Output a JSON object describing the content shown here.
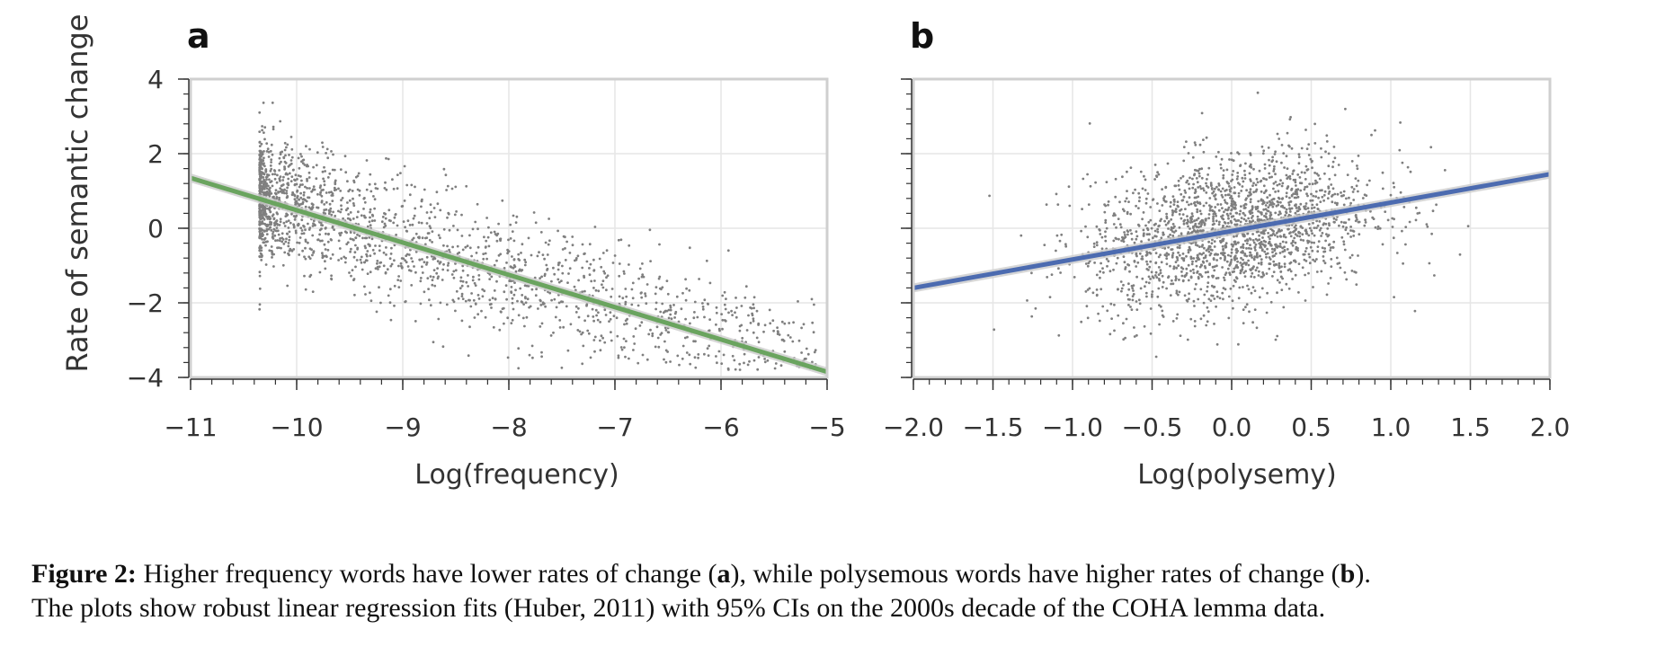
{
  "caption": {
    "prefix": "Figure 2:",
    "part1": " Higher frequency words have lower rates of change (",
    "ref_a": "a",
    "part2": "), while polysemous words have higher rates of change (",
    "ref_b": "b",
    "part3": ").",
    "line2": "The plots show robust linear regression fits (Huber, 2011) with 95% CIs on the 2000s decade of the COHA lemma data."
  },
  "chart_data": [
    {
      "type": "scatter",
      "panel_label": "a",
      "title": "",
      "xlabel": "Log(frequency)",
      "ylabel": "Rate of semantic change",
      "xlim": [
        -11,
        -5
      ],
      "ylim": [
        -4,
        4
      ],
      "xticks": [
        "−11",
        "−10",
        "−9",
        "−8",
        "−7",
        "−6",
        "−5"
      ],
      "yticks": [
        "4",
        "2",
        "0",
        "−2",
        "−4"
      ],
      "xtick_values": [
        -11,
        -10,
        -9,
        -8,
        -7,
        -6,
        -5
      ],
      "ytick_values": [
        4,
        2,
        0,
        -2,
        -4
      ],
      "grid": true,
      "scatter": {
        "color": "#7f7f7f",
        "approx_points": 2000,
        "x_range": [
          -10.35,
          -5.1
        ],
        "x_distribution": "dense near -10.3, thinning toward -5",
        "residual_sd": 0.85
      },
      "regression": {
        "color": "#6aa45f",
        "ci_color": "#cccccc",
        "ci_level": "95%",
        "points": [
          [
            -11,
            1.35
          ],
          [
            -5,
            -3.85
          ]
        ]
      }
    },
    {
      "type": "scatter",
      "panel_label": "b",
      "title": "",
      "xlabel": "Log(polysemy)",
      "ylabel": "",
      "xlim": [
        -2.0,
        2.0
      ],
      "ylim": [
        -4,
        4
      ],
      "xticks": [
        "−2.0",
        "−1.5",
        "−1.0",
        "−0.5",
        "0.0",
        "0.5",
        "1.0",
        "1.5",
        "2.0"
      ],
      "xtick_values": [
        -2.0,
        -1.5,
        -1.0,
        -0.5,
        0.0,
        0.5,
        1.0,
        1.5,
        2.0
      ],
      "ytick_values": [
        4,
        2,
        0,
        -2,
        -4
      ],
      "grid": true,
      "scatter": {
        "color": "#7f7f7f",
        "approx_points": 2000,
        "x_range": [
          -1.6,
          1.7
        ],
        "x_distribution": "roughly normal centred near 0.0",
        "residual_sd": 1.0
      },
      "regression": {
        "color": "#4c6bb0",
        "ci_color": "#cccccc",
        "ci_level": "95%",
        "points": [
          [
            -2.0,
            -1.6
          ],
          [
            2.0,
            1.45
          ]
        ]
      }
    }
  ]
}
